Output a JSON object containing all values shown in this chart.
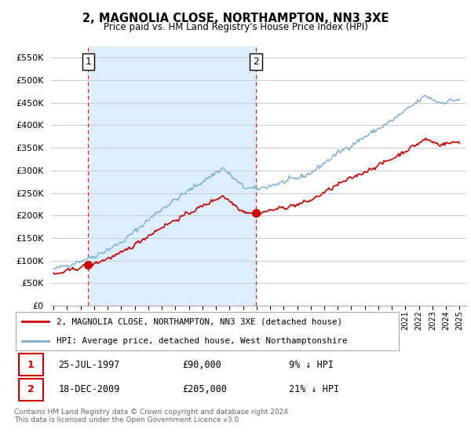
{
  "title": "2, MAGNOLIA CLOSE, NORTHAMPTON, NN3 3XE",
  "subtitle": "Price paid vs. HM Land Registry's House Price Index (HPI)",
  "sale1_date": "25-JUL-1997",
  "sale1_price": 90000,
  "sale1_pct": "9% ↓ HPI",
  "sale2_date": "18-DEC-2009",
  "sale2_price": 205000,
  "sale2_pct": "21% ↓ HPI",
  "legend_red": "2, MAGNOLIA CLOSE, NORTHAMPTON, NN3 3XE (detached house)",
  "legend_blue": "HPI: Average price, detached house, West Northamptonshire",
  "footer": "Contains HM Land Registry data © Crown copyright and database right 2024.\nThis data is licensed under the Open Government Licence v3.0.",
  "red_color": "#cc0000",
  "blue_color": "#7aadcf",
  "bg_fill_color": "#ddeeff",
  "ylim": [
    0,
    575000
  ],
  "yticks": [
    0,
    50000,
    100000,
    150000,
    200000,
    250000,
    300000,
    350000,
    400000,
    450000,
    500000,
    550000
  ],
  "sale1_x": 1997.56,
  "sale2_x": 2009.96,
  "xlim_left": 1994.8,
  "xlim_right": 2025.5
}
